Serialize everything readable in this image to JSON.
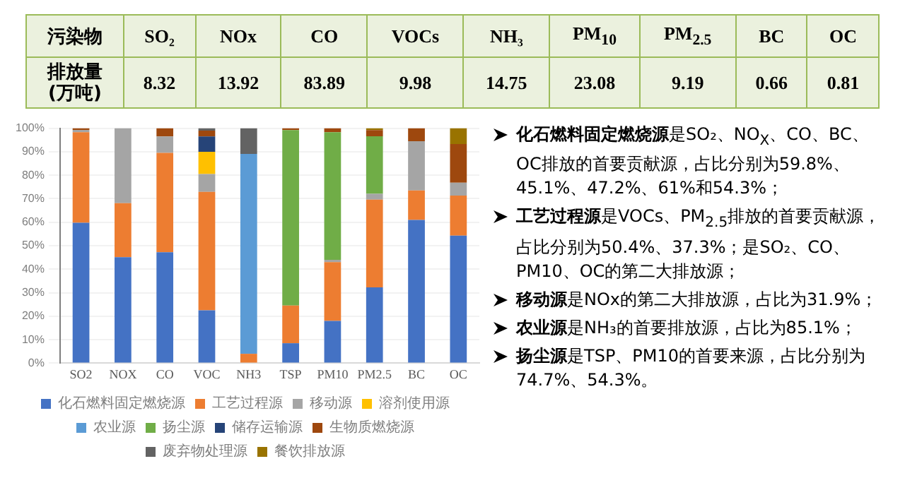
{
  "chart_data": [
    {
      "type": "other",
      "xlabel": "污染物",
      "ylabel": "排放量(万吨)",
      "categories": [
        "SO₂",
        "NOx",
        "CO",
        "VOCs",
        "NH₃",
        "PM$_{10}$",
        "PM$_{2.5}$",
        "BC",
        "OC"
      ],
      "values": [
        8.32,
        13.92,
        83.89,
        9.98,
        14.75,
        23.08,
        9.19,
        0.66,
        0.81
      ],
      "data_labels": true
    },
    {
      "type": "bar",
      "stacked": true,
      "categories": [
        "SO2",
        "NOX",
        "CO",
        "VOC",
        "NH3",
        "TSP",
        "PM10",
        "PM2.5",
        "BC",
        "OC"
      ],
      "series": [
        {
          "name": "化石燃料固定燃烧源",
          "color": "#4472c4",
          "values": [
            59.8,
            45.1,
            47.2,
            22.5,
            0,
            8.5,
            18,
            32.3,
            61,
            54.3
          ]
        },
        {
          "name": "工艺过程源",
          "color": "#ed7d31",
          "values": [
            38.5,
            23,
            42.3,
            50.4,
            4,
            16,
            25,
            37.3,
            12.5,
            17
          ]
        },
        {
          "name": "移动源",
          "color": "#a5a5a5",
          "values": [
            1,
            31.9,
            7,
            7.6,
            0,
            0,
            1,
            2.5,
            21,
            5.5
          ]
        },
        {
          "name": "溶剂使用源",
          "color": "#ffc000",
          "values": [
            0,
            0,
            0,
            9.5,
            0,
            0,
            0,
            0,
            0,
            0
          ]
        },
        {
          "name": "农业源",
          "color": "#5b9bd5",
          "values": [
            0,
            0,
            0,
            0,
            85.1,
            0,
            0,
            0,
            0,
            0
          ]
        },
        {
          "name": "扬尘源",
          "color": "#70ad47",
          "values": [
            0,
            0,
            0,
            0,
            0,
            74.7,
            54.3,
            24.5,
            0,
            0
          ]
        },
        {
          "name": "储存运输源",
          "color": "#264478",
          "values": [
            0,
            0,
            0,
            6.5,
            0,
            0,
            0,
            0,
            0,
            0
          ]
        },
        {
          "name": "生物质燃烧源",
          "color": "#9e480e",
          "values": [
            0.7,
            0,
            3.5,
            2.5,
            0,
            0.8,
            1.7,
            2.6,
            5.5,
            16.5
          ]
        },
        {
          "name": "废弃物处理源",
          "color": "#636363",
          "values": [
            0,
            0,
            0,
            1,
            10.9,
            0,
            0,
            0,
            0,
            0
          ]
        },
        {
          "name": "餐饮排放源",
          "color": "#997300",
          "values": [
            0,
            0,
            0,
            0,
            0,
            0,
            0,
            0.8,
            0,
            6.7
          ]
        }
      ],
      "ylim": [
        0,
        100
      ],
      "yticks": [
        {
          "value": 0,
          "label": "0%"
        },
        {
          "value": 10,
          "label": "10%"
        },
        {
          "value": 20,
          "label": "20%"
        },
        {
          "value": 30,
          "label": "30%"
        },
        {
          "value": 40,
          "label": "40%"
        },
        {
          "value": 50,
          "label": "50%"
        },
        {
          "value": 60,
          "label": "60%"
        },
        {
          "value": 70,
          "label": "70%"
        },
        {
          "value": 80,
          "label": "80%"
        },
        {
          "value": 90,
          "label": "90%"
        },
        {
          "value": 100,
          "label": "100%"
        }
      ],
      "grid": "y",
      "legend": "bottom"
    },
    {
      "type": "other",
      "annotations": [
        "化石燃料固定燃烧源",
        "是SO₂、NO$_{X}$、CO、BC、OC排放的首要贡献源，占比分别为59.8%、45.1%、47.2%、61%和54.3%；",
        "工艺过程源",
        "是VOCs、PM$_{2.5}$排放的首要贡献源，占比分别为50.4%、37.3%；是SO₂、CO、PM10、OC的第二大排放源；",
        "移动源",
        "是NOx的第二大排放源，占比为31.9%；",
        "农业源",
        "是NH₃的首要排放源，占比为85.1%；",
        "扬尘源",
        "是TSP、PM10的首要来源，占比分别为74.7%、54.3%。"
      ]
    }
  ]
}
